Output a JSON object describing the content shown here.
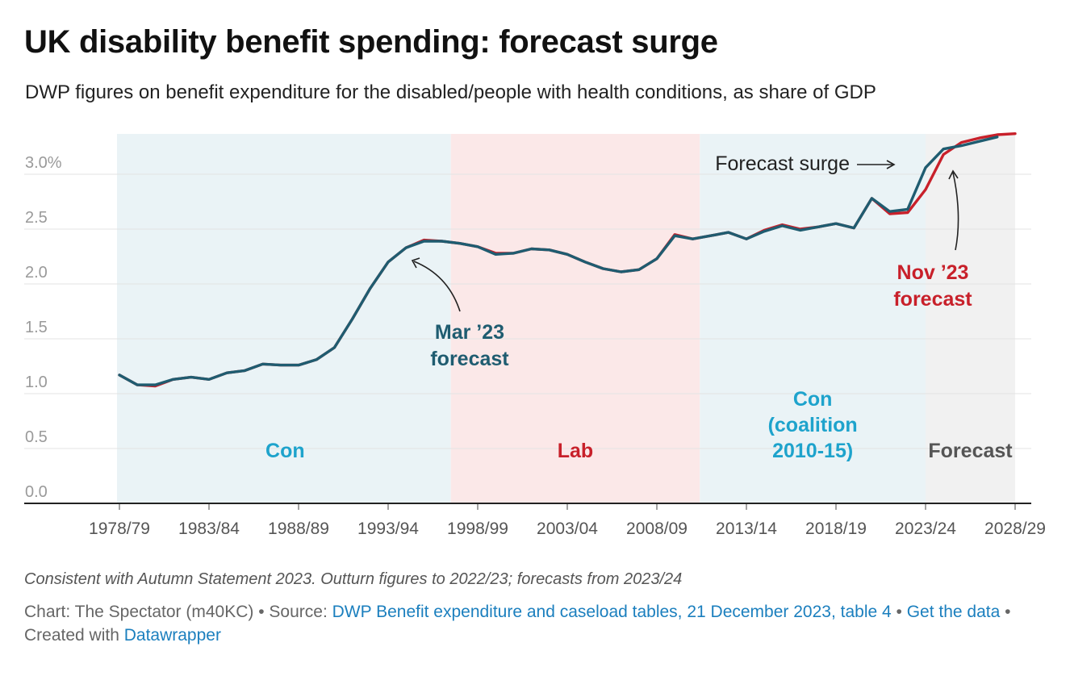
{
  "header": {
    "title": "UK disability benefit spending: forecast surge",
    "subtitle": "DWP figures on benefit expenditure for the disabled/people with health conditions, as share of GDP"
  },
  "footer": {
    "notes": "Consistent with Autumn Statement 2023. Outturn figures to 2022/23; forecasts from 2023/24",
    "chart_prefix": "Chart: The Spectator (m40KC) • Source: ",
    "source_link": "DWP Benefit expenditure and caseload tables, 21 December 2023, table 4",
    "sep": " • ",
    "get_data_link": "Get the data",
    "created_with": " • Created with ",
    "datawrapper_link": "Datawrapper"
  },
  "colors": {
    "mar23_line": "#1f5c70",
    "nov23_line": "#c8202a",
    "con_band": "#eaf3f6",
    "lab_band": "#fbe8e8",
    "forecast_band": "#f1f1f1",
    "con_label": "#1ea3cc",
    "lab_label": "#c8202a",
    "forecast_label": "#555555"
  },
  "chart_data": {
    "type": "line",
    "title": "UK disability benefit spending: forecast surge",
    "subtitle": "DWP figures on benefit expenditure for the disabled/people with health conditions, as share of GDP",
    "x_start_year": 1978,
    "xticks": [
      "1978/79",
      "1983/84",
      "1988/89",
      "1993/94",
      "1998/99",
      "2003/04",
      "2008/09",
      "2013/14",
      "2018/19",
      "2023/24",
      "2028/29"
    ],
    "yticks": [
      "0.0",
      "0.5",
      "1.0",
      "1.5",
      "2.0",
      "2.5",
      "3.0%"
    ],
    "ylim": [
      0,
      3.4
    ],
    "grid": true,
    "series": [
      {
        "name": "Mar ’23 forecast",
        "color": "#1f5c70",
        "years": [
          "1978/79",
          "1979/80",
          "1980/81",
          "1981/82",
          "1982/83",
          "1983/84",
          "1984/85",
          "1985/86",
          "1986/87",
          "1987/88",
          "1988/89",
          "1989/90",
          "1990/91",
          "1991/92",
          "1992/93",
          "1993/94",
          "1994/95",
          "1995/96",
          "1996/97",
          "1997/98",
          "1998/99",
          "1999/00",
          "2000/01",
          "2001/02",
          "2002/03",
          "2003/04",
          "2004/05",
          "2005/06",
          "2006/07",
          "2007/08",
          "2008/09",
          "2009/10",
          "2010/11",
          "2011/12",
          "2012/13",
          "2013/14",
          "2014/15",
          "2015/16",
          "2016/17",
          "2017/18",
          "2018/19",
          "2019/20",
          "2020/21",
          "2021/22",
          "2022/23",
          "2023/24",
          "2024/25",
          "2025/26",
          "2026/27",
          "2027/28"
        ],
        "values": [
          1.17,
          1.08,
          1.08,
          1.13,
          1.15,
          1.13,
          1.19,
          1.21,
          1.27,
          1.26,
          1.26,
          1.31,
          1.42,
          1.68,
          1.96,
          2.2,
          2.33,
          2.39,
          2.39,
          2.37,
          2.34,
          2.27,
          2.28,
          2.32,
          2.31,
          2.27,
          2.2,
          2.14,
          2.11,
          2.13,
          2.23,
          2.44,
          2.41,
          2.44,
          2.47,
          2.41,
          2.48,
          2.53,
          2.49,
          2.52,
          2.55,
          2.51,
          2.78,
          2.66,
          2.68,
          3.06,
          3.23,
          3.26,
          3.3,
          3.34
        ]
      },
      {
        "name": "Nov ’23 forecast",
        "color": "#c8202a",
        "years": [
          "1978/79",
          "1979/80",
          "1980/81",
          "1981/82",
          "1982/83",
          "1983/84",
          "1984/85",
          "1985/86",
          "1986/87",
          "1987/88",
          "1988/89",
          "1989/90",
          "1990/91",
          "1991/92",
          "1992/93",
          "1993/94",
          "1994/95",
          "1995/96",
          "1996/97",
          "1997/98",
          "1998/99",
          "1999/00",
          "2000/01",
          "2001/02",
          "2002/03",
          "2003/04",
          "2004/05",
          "2005/06",
          "2006/07",
          "2007/08",
          "2008/09",
          "2009/10",
          "2010/11",
          "2011/12",
          "2012/13",
          "2013/14",
          "2014/15",
          "2015/16",
          "2016/17",
          "2017/18",
          "2018/19",
          "2019/20",
          "2020/21",
          "2021/22",
          "2022/23",
          "2023/24",
          "2024/25",
          "2025/26",
          "2026/27",
          "2027/28",
          "2028/29"
        ],
        "values": [
          1.17,
          1.08,
          1.07,
          1.13,
          1.15,
          1.13,
          1.19,
          1.21,
          1.27,
          1.26,
          1.26,
          1.31,
          1.42,
          1.68,
          1.96,
          2.2,
          2.33,
          2.4,
          2.39,
          2.37,
          2.34,
          2.28,
          2.28,
          2.32,
          2.31,
          2.27,
          2.2,
          2.14,
          2.11,
          2.13,
          2.23,
          2.45,
          2.41,
          2.44,
          2.47,
          2.41,
          2.49,
          2.54,
          2.5,
          2.52,
          2.55,
          2.51,
          2.78,
          2.64,
          2.65,
          2.86,
          3.18,
          3.29,
          3.33,
          3.36,
          3.37
        ]
      }
    ],
    "bands": [
      {
        "label": "Con",
        "from_year": 1978,
        "to_year": 1996.5,
        "kind": "con"
      },
      {
        "label": "Lab",
        "from_year": 1996.5,
        "to_year": 2010.4,
        "kind": "lab"
      },
      {
        "label": "Con (coalition 2010-15)",
        "lines": [
          "Con",
          "(coalition",
          "2010-15)"
        ],
        "from_year": 2010.4,
        "to_year": 2023.0,
        "kind": "con"
      },
      {
        "label": "Forecast",
        "from_year": 2023.0,
        "to_year": 2028.0,
        "kind": "forecast"
      }
    ],
    "annotations": {
      "mar23": [
        "Mar ’23",
        "forecast"
      ],
      "nov23": [
        "Nov ’23",
        "forecast"
      ],
      "surge": "Forecast surge"
    }
  }
}
